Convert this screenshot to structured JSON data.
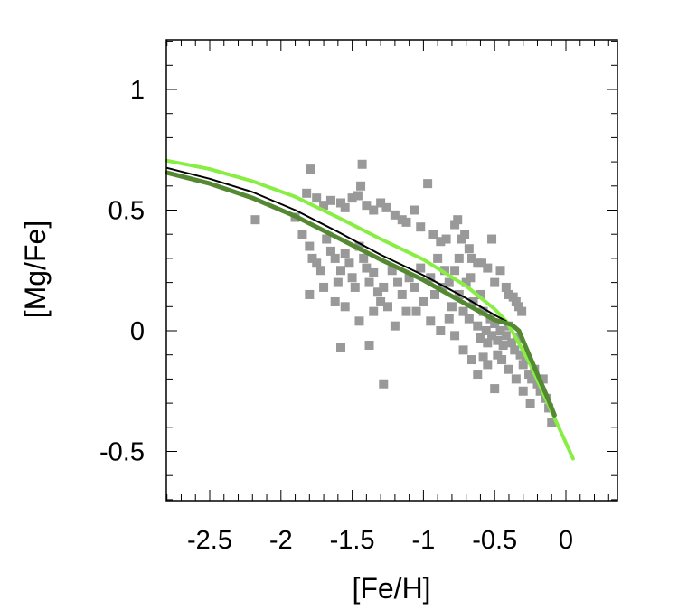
{
  "chart_data": {
    "type": "scatter",
    "title": "",
    "xlabel": "[Fe/H]",
    "ylabel": "[Mg/Fe]",
    "xlim": [
      -2.8,
      0.4
    ],
    "ylim": [
      -0.7,
      1.2
    ],
    "grid": false,
    "x_ticks": [
      {
        "value": -2.5,
        "label": "-2.5"
      },
      {
        "value": -2,
        "label": "-2"
      },
      {
        "value": -1.5,
        "label": "-1.5"
      },
      {
        "value": -1,
        "label": "-1"
      },
      {
        "value": -0.5,
        "label": "-0.5"
      },
      {
        "value": 0,
        "label": "0"
      }
    ],
    "y_ticks": [
      {
        "value": 1,
        "label": "1"
      },
      {
        "value": 0.5,
        "label": "0.5"
      },
      {
        "value": 0,
        "label": "0"
      },
      {
        "value": -0.5,
        "label": "-0.5"
      }
    ],
    "scatter": {
      "name": "stars",
      "color": "#999999",
      "points": [
        [
          -2.18,
          0.46
        ],
        [
          -1.79,
          0.67
        ],
        [
          -1.82,
          0.57
        ],
        [
          -1.75,
          0.55
        ],
        [
          -1.7,
          0.52
        ],
        [
          -1.65,
          0.54
        ],
        [
          -1.58,
          0.53
        ],
        [
          -1.55,
          0.51
        ],
        [
          -1.5,
          0.55
        ],
        [
          -1.43,
          0.69
        ],
        [
          -1.44,
          0.6
        ],
        [
          -1.46,
          0.56
        ],
        [
          -1.4,
          0.52
        ],
        [
          -1.35,
          0.5
        ],
        [
          -1.3,
          0.53
        ],
        [
          -1.26,
          0.51
        ],
        [
          -1.2,
          0.48
        ],
        [
          -1.15,
          0.46
        ],
        [
          -1.12,
          0.45
        ],
        [
          -1.06,
          0.5
        ],
        [
          -1.02,
          0.43
        ],
        [
          -0.97,
          0.61
        ],
        [
          -0.93,
          0.4
        ],
        [
          -0.88,
          0.37
        ],
        [
          -0.84,
          0.38
        ],
        [
          -0.78,
          0.44
        ],
        [
          -0.76,
          0.46
        ],
        [
          -0.71,
          0.4
        ],
        [
          -0.73,
          0.38
        ],
        [
          -0.68,
          0.34
        ],
        [
          -0.66,
          0.3
        ],
        [
          -0.62,
          0.28
        ],
        [
          -0.59,
          0.28
        ],
        [
          -0.55,
          0.26
        ],
        [
          -0.52,
          0.38
        ],
        [
          -0.5,
          0.2
        ],
        [
          -0.46,
          0.25
        ],
        [
          -0.42,
          0.18
        ],
        [
          -0.4,
          0.15
        ],
        [
          -0.37,
          0.14
        ],
        [
          -0.35,
          0.12
        ],
        [
          -0.33,
          0.1
        ],
        [
          -0.31,
          0.08
        ],
        [
          -1.9,
          0.47
        ],
        [
          -1.85,
          0.4
        ],
        [
          -1.8,
          0.35
        ],
        [
          -1.78,
          0.3
        ],
        [
          -1.75,
          0.28
        ],
        [
          -1.72,
          0.25
        ],
        [
          -1.68,
          0.38
        ],
        [
          -1.65,
          0.33
        ],
        [
          -1.62,
          0.3
        ],
        [
          -1.6,
          0.2
        ],
        [
          -1.58,
          0.25
        ],
        [
          -1.55,
          0.32
        ],
        [
          -1.52,
          0.28
        ],
        [
          -1.5,
          0.22
        ],
        [
          -1.48,
          0.18
        ],
        [
          -1.45,
          0.35
        ],
        [
          -1.42,
          0.3
        ],
        [
          -1.4,
          0.26
        ],
        [
          -1.38,
          0.2
        ],
        [
          -1.35,
          0.24
        ],
        [
          -1.32,
          0.16
        ],
        [
          -1.3,
          0.12
        ],
        [
          -1.28,
          0.18
        ],
        [
          -1.25,
          0.1
        ],
        [
          -1.22,
          0.25
        ],
        [
          -1.18,
          0.2
        ],
        [
          -1.15,
          0.15
        ],
        [
          -1.12,
          0.08
        ],
        [
          -1.1,
          0.22
        ],
        [
          -1.06,
          0.18
        ],
        [
          -1.02,
          0.26
        ],
        [
          -1.0,
          0.12
        ],
        [
          -0.95,
          0.22
        ],
        [
          -0.92,
          0.15
        ],
        [
          -0.9,
          0.3
        ],
        [
          -0.87,
          0.18
        ],
        [
          -0.85,
          0.25
        ],
        [
          -0.82,
          0.2
        ],
        [
          -0.8,
          0.1
        ],
        [
          -0.78,
          0.25
        ],
        [
          -0.75,
          0.15
        ],
        [
          -0.72,
          0.08
        ],
        [
          -0.7,
          0.2
        ],
        [
          -0.68,
          0.05
        ],
        [
          -0.65,
          0.12
        ],
        [
          -0.62,
          0.02
        ],
        [
          -0.6,
          -0.03
        ],
        [
          -0.58,
          0.08
        ],
        [
          -0.56,
          0.0
        ],
        [
          -0.55,
          -0.05
        ],
        [
          -0.53,
          0.05
        ],
        [
          -0.52,
          -0.02
        ],
        [
          -0.5,
          0.03
        ],
        [
          -0.48,
          -0.04
        ],
        [
          -0.46,
          0.0
        ],
        [
          -0.44,
          -0.06
        ],
        [
          -0.42,
          -0.02
        ],
        [
          -0.4,
          0.02
        ],
        [
          -0.38,
          -0.05
        ],
        [
          -0.36,
          -0.08
        ],
        [
          -0.34,
          -0.03
        ],
        [
          -0.32,
          -0.1
        ],
        [
          -0.3,
          -0.14
        ],
        [
          -0.28,
          -0.12
        ],
        [
          -0.26,
          -0.18
        ],
        [
          -0.24,
          -0.2
        ],
        [
          -0.22,
          -0.16
        ],
        [
          -0.2,
          -0.22
        ],
        [
          -0.18,
          -0.25
        ],
        [
          -0.16,
          -0.2
        ],
        [
          -0.14,
          -0.28
        ],
        [
          -0.12,
          -0.32
        ],
        [
          -0.1,
          -0.38
        ],
        [
          -0.25,
          -0.3
        ],
        [
          -0.3,
          -0.25
        ],
        [
          -0.55,
          -0.14
        ],
        [
          -0.62,
          -0.18
        ],
        [
          -0.5,
          -0.24
        ],
        [
          -0.45,
          -0.12
        ],
        [
          -0.58,
          -0.11
        ],
        [
          -1.58,
          -0.07
        ],
        [
          -1.28,
          -0.22
        ],
        [
          -1.38,
          -0.06
        ],
        [
          -1.8,
          0.15
        ],
        [
          -1.7,
          0.18
        ],
        [
          -1.62,
          0.12
        ],
        [
          -1.55,
          0.1
        ],
        [
          -1.45,
          0.04
        ],
        [
          -1.35,
          0.08
        ],
        [
          -1.2,
          0.02
        ],
        [
          -1.05,
          0.08
        ],
        [
          -0.95,
          0.04
        ],
        [
          -0.88,
          0.0
        ],
        [
          -0.78,
          -0.02
        ],
        [
          -0.72,
          -0.08
        ],
        [
          -0.66,
          -0.12
        ],
        [
          -0.82,
          0.05
        ],
        [
          -0.4,
          -0.16
        ],
        [
          -0.35,
          -0.2
        ],
        [
          -0.48,
          -0.1
        ],
        [
          -0.6,
          0.15
        ],
        [
          -0.67,
          0.22
        ],
        [
          -0.75,
          0.3
        ]
      ]
    },
    "series": [
      {
        "name": "light green model",
        "color": "#88ee44",
        "x": [
          -2.8,
          -2.5,
          -2.2,
          -1.9,
          -1.6,
          -1.3,
          -1.0,
          -0.7,
          -0.5,
          -0.42,
          -0.35,
          -0.25,
          -0.15,
          -0.05,
          0.05
        ],
        "y": [
          0.705,
          0.67,
          0.62,
          0.555,
          0.47,
          0.38,
          0.295,
          0.185,
          0.09,
          0.04,
          -0.03,
          -0.14,
          -0.27,
          -0.4,
          -0.53
        ]
      },
      {
        "name": "black model",
        "color": "#000000",
        "x": [
          -2.8,
          -2.5,
          -2.2,
          -1.9,
          -1.6,
          -1.3,
          -1.0,
          -0.7,
          -0.5,
          -0.42
        ],
        "y": [
          0.675,
          0.63,
          0.575,
          0.5,
          0.41,
          0.315,
          0.23,
          0.135,
          0.065,
          0.04
        ]
      },
      {
        "name": "dark green model",
        "color": "#558833",
        "x": [
          -2.8,
          -2.5,
          -2.2,
          -1.9,
          -1.6,
          -1.3,
          -1.0,
          -0.7,
          -0.5,
          -0.38,
          -0.33,
          -0.28,
          -0.2,
          -0.12,
          -0.08
        ],
        "y": [
          0.655,
          0.61,
          0.55,
          0.475,
          0.385,
          0.295,
          0.21,
          0.11,
          0.045,
          0.025,
          0.0,
          -0.07,
          -0.18,
          -0.29,
          -0.35
        ]
      }
    ]
  }
}
